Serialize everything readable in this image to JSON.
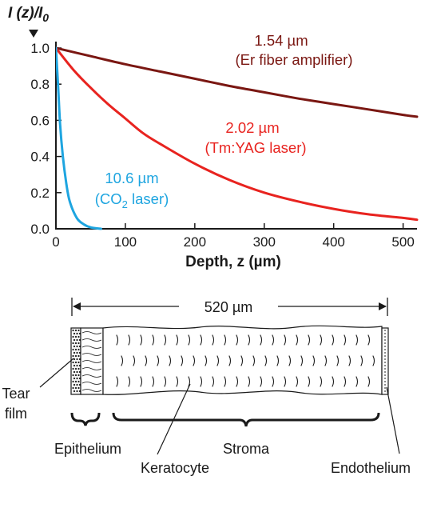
{
  "chart_data": {
    "type": "line",
    "ylabel": {
      "main": "I (z)/I",
      "sub": "0"
    },
    "xlabel": "Depth, z (µm)",
    "xlim": [
      0,
      520
    ],
    "ylim": [
      0,
      1.0
    ],
    "xticks": [
      0,
      100,
      200,
      300,
      400,
      500
    ],
    "yticks": [
      "0.0",
      "0.2",
      "0.4",
      "0.6",
      "0.8",
      "1.0"
    ],
    "grid": false,
    "series": [
      {
        "name": "1.54 µm (Er fiber amplifier)",
        "color": "#7a1712",
        "x": [
          0,
          50,
          100,
          150,
          200,
          250,
          300,
          350,
          400,
          450,
          500,
          520
        ],
        "y": [
          1.0,
          0.955,
          0.91,
          0.87,
          0.83,
          0.79,
          0.755,
          0.72,
          0.69,
          0.66,
          0.63,
          0.62
        ]
      },
      {
        "name": "2.02 µm (Tm:YAG laser)",
        "color": "#e8231f",
        "x": [
          0,
          25,
          50,
          75,
          100,
          125,
          150,
          200,
          250,
          300,
          350,
          400,
          450,
          500,
          520
        ],
        "y": [
          1.0,
          0.88,
          0.78,
          0.69,
          0.61,
          0.53,
          0.47,
          0.36,
          0.27,
          0.2,
          0.15,
          0.11,
          0.08,
          0.06,
          0.05
        ]
      },
      {
        "name": "10.6 µm (CO2 laser)",
        "color": "#1ea5e0",
        "x": [
          0,
          3,
          6,
          10,
          15,
          20,
          30,
          40,
          50,
          65
        ],
        "y": [
          1.0,
          0.8,
          0.58,
          0.4,
          0.25,
          0.15,
          0.06,
          0.025,
          0.008,
          0.0
        ]
      }
    ]
  },
  "annotations": {
    "er": {
      "wavelength": "1.54 µm",
      "source": "(Er fiber amplifier)"
    },
    "tm": {
      "wavelength": "2.02 µm",
      "source": "(Tm:YAG laser)"
    },
    "co2": {
      "wavelength": "10.6 µm",
      "source_open": "(CO",
      "source_sub": "2",
      "source_close": " laser)"
    }
  },
  "diagram": {
    "width_label": "520 µm",
    "labels": {
      "tear_line1": "Tear",
      "tear_line2": "film",
      "epithelium": "Epithelium",
      "stroma": "Stroma",
      "keratocyte": "Keratocyte",
      "endothelium": "Endothelium"
    }
  }
}
